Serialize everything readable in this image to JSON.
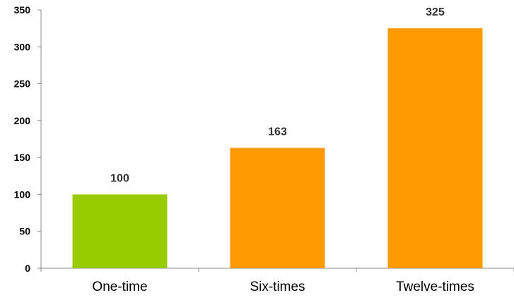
{
  "chart_data": {
    "type": "bar",
    "title": "",
    "xlabel": "",
    "ylabel": "",
    "categories": [
      "One-time",
      "Six-times",
      "Twelve-times"
    ],
    "values": [
      100,
      163,
      325
    ],
    "data_labels": [
      "100",
      "163",
      "325"
    ],
    "ylim": [
      0,
      350
    ],
    "yticks": [
      0,
      50,
      100,
      150,
      200,
      250,
      300,
      350
    ],
    "ytick_labels": [
      "0",
      "50",
      "100",
      "150",
      "200",
      "250",
      "300",
      "350"
    ],
    "bar_colors": [
      "#99cc00",
      "#ff9900",
      "#ff9900"
    ],
    "grid": false,
    "legend": "none"
  }
}
